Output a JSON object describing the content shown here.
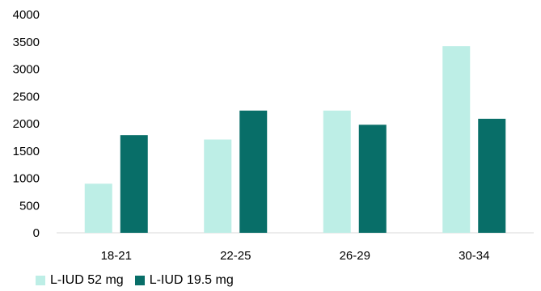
{
  "chart_data": {
    "type": "bar",
    "categories": [
      "18-21",
      "22-25",
      "26-29",
      "30-34"
    ],
    "series": [
      {
        "name": "L-IUD 52 mg",
        "color": "#bdeee6",
        "values": [
          900,
          1710,
          2240,
          3420
        ]
      },
      {
        "name": "L-IUD 19.5 mg",
        "color": "#086e68",
        "values": [
          1790,
          2240,
          1980,
          2090
        ]
      }
    ],
    "yticks": [
      "4000",
      "3500",
      "3000",
      "2500",
      "2000",
      "1500",
      "1000",
      "500",
      "0"
    ],
    "ylim": [
      0,
      4000
    ],
    "ytick_step": 500,
    "grid": false,
    "axis_line_color": "#d9d9d9",
    "legend_position": "bottom-left",
    "title": "",
    "xlabel": "",
    "ylabel": ""
  }
}
